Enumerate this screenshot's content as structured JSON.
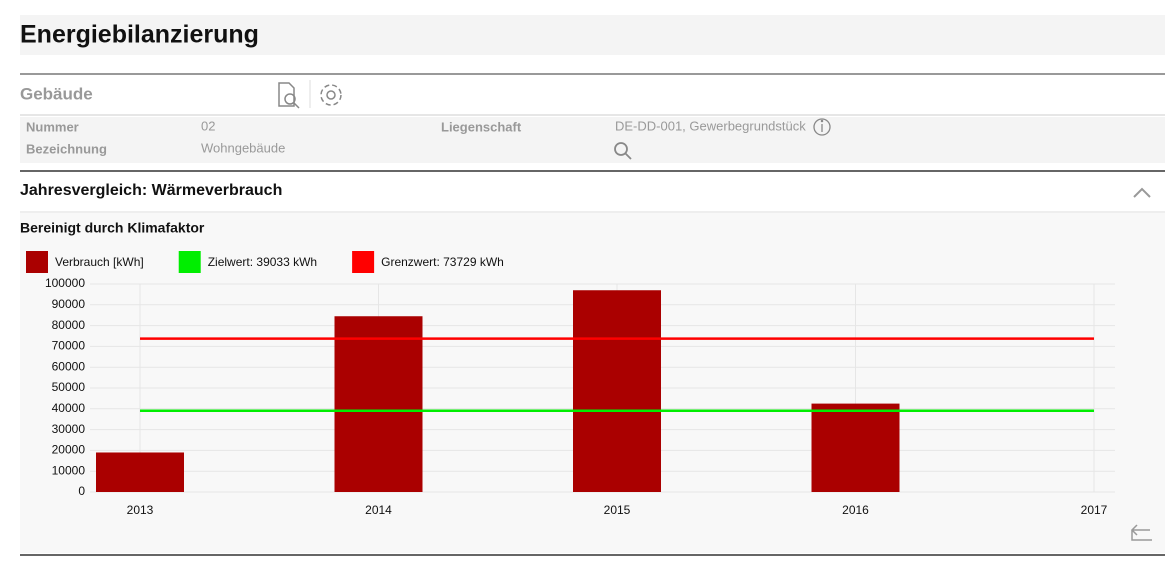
{
  "header": {
    "title": "Energiebilanzierung"
  },
  "building": {
    "title": "Gebäude",
    "fields": [
      {
        "label": "Nummer",
        "value": "02"
      },
      {
        "label": "Bezeichnung",
        "value": "Wohngebäude"
      },
      {
        "label": "Liegenschaft",
        "value": "DE-DD-001, Gewerbegrundstück"
      }
    ]
  },
  "section": {
    "title": "Jahresvergleich: Wärmeverbrauch"
  },
  "chart_data": {
    "type": "bar",
    "subtitle": "Bereinigt durch Klimafaktor",
    "categories": [
      "2013",
      "2014",
      "2015",
      "2016",
      "2017"
    ],
    "series": [
      {
        "name": "Verbrauch [kWh]",
        "color": "#aa0000",
        "values": [
          19000,
          84500,
          97000,
          42500,
          null
        ]
      }
    ],
    "reference_lines": [
      {
        "name": "Zielwert: 39033 kWh",
        "color": "#00ee00",
        "value": 39033
      },
      {
        "name": "Grenzwert: 73729 kWh",
        "color": "#ff0000",
        "value": 73729
      }
    ],
    "ylim": [
      0,
      100000
    ],
    "yticks": [
      0,
      10000,
      20000,
      30000,
      40000,
      50000,
      60000,
      70000,
      80000,
      90000,
      100000
    ],
    "grid": true
  }
}
